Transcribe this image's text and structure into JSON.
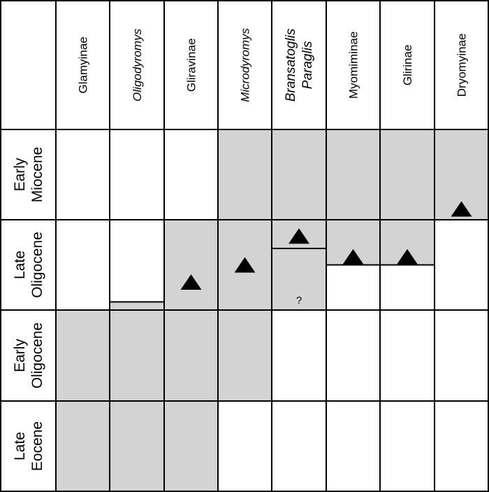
{
  "columns": [
    {
      "lines": [
        "Glamyinae"
      ],
      "italic": false
    },
    {
      "lines": [
        "Oligodyromys"
      ],
      "italic": true
    },
    {
      "lines": [
        "Gliravinae"
      ],
      "italic": false
    },
    {
      "lines": [
        "Microdyromys"
      ],
      "italic": true
    },
    {
      "lines": [
        "Bransatoglis",
        "Paraglis"
      ],
      "italic": true
    },
    {
      "lines": [
        "Myomiminae"
      ],
      "italic": false
    },
    {
      "lines": [
        "Glirinae"
      ],
      "italic": false
    },
    {
      "lines": [
        "Dryomyinae"
      ],
      "italic": false
    }
  ],
  "rows": [
    {
      "lines": [
        "Early",
        "Miocene"
      ]
    },
    {
      "lines": [
        "Late",
        "Oligocene"
      ]
    },
    {
      "lines": [
        "Early",
        "Oligocene"
      ]
    },
    {
      "lines": [
        "Late",
        "Eocene"
      ]
    }
  ],
  "colors": {
    "shade": "#d3d3d3",
    "grid": "#000000",
    "marker": "#000000"
  },
  "ranges": [
    {
      "column": 0,
      "from_top_of": "Early Oligocene",
      "to_bottom_of": "Late Eocene",
      "within_row_start": 0,
      "within_row_end": 1
    },
    {
      "column": 1,
      "from_top_of": "Late Oligocene",
      "to_bottom_of": "Late Eocene",
      "within_row_start": 0.91,
      "within_row_end": 1
    },
    {
      "column": 2,
      "from_top_of": "Late Oligocene",
      "to_bottom_of": "Late Eocene",
      "within_row_start": 0,
      "within_row_end": 1
    },
    {
      "column": 3,
      "from_top_of": "Early Miocene",
      "to_bottom_of": "Early Oligocene",
      "within_row_start": 0,
      "within_row_end": 1
    },
    {
      "column": 4,
      "from_top_of": "Early Miocene",
      "to_bottom_of": "Late Oligocene",
      "within_row_start": 0,
      "within_row_end": 1,
      "query_mark": "?"
    },
    {
      "column": 5,
      "from_top_of": "Early Miocene",
      "to_bottom_of": "Late Oligocene",
      "within_row_start": 0,
      "within_row_end": 0.5
    },
    {
      "column": 6,
      "from_top_of": "Early Miocene",
      "to_bottom_of": "Late Oligocene",
      "within_row_start": 0,
      "within_row_end": 0.5
    },
    {
      "column": 7,
      "from_top_of": "Early Miocene",
      "to_bottom_of": "Early Miocene",
      "within_row_start": 0,
      "within_row_end": 1
    }
  ],
  "markers": [
    {
      "column": 2,
      "row": "Late Oligocene",
      "level": 0.69
    },
    {
      "column": 3,
      "row": "Late Oligocene",
      "level": 0.5
    },
    {
      "column": 4,
      "row": "Late Oligocene",
      "level": 0.18
    },
    {
      "column": 5,
      "row": "Late Oligocene",
      "level": 0.41
    },
    {
      "column": 6,
      "row": "Late Oligocene",
      "level": 0.41
    },
    {
      "column": 7,
      "row": "Early Miocene",
      "level": 0.88
    }
  ]
}
